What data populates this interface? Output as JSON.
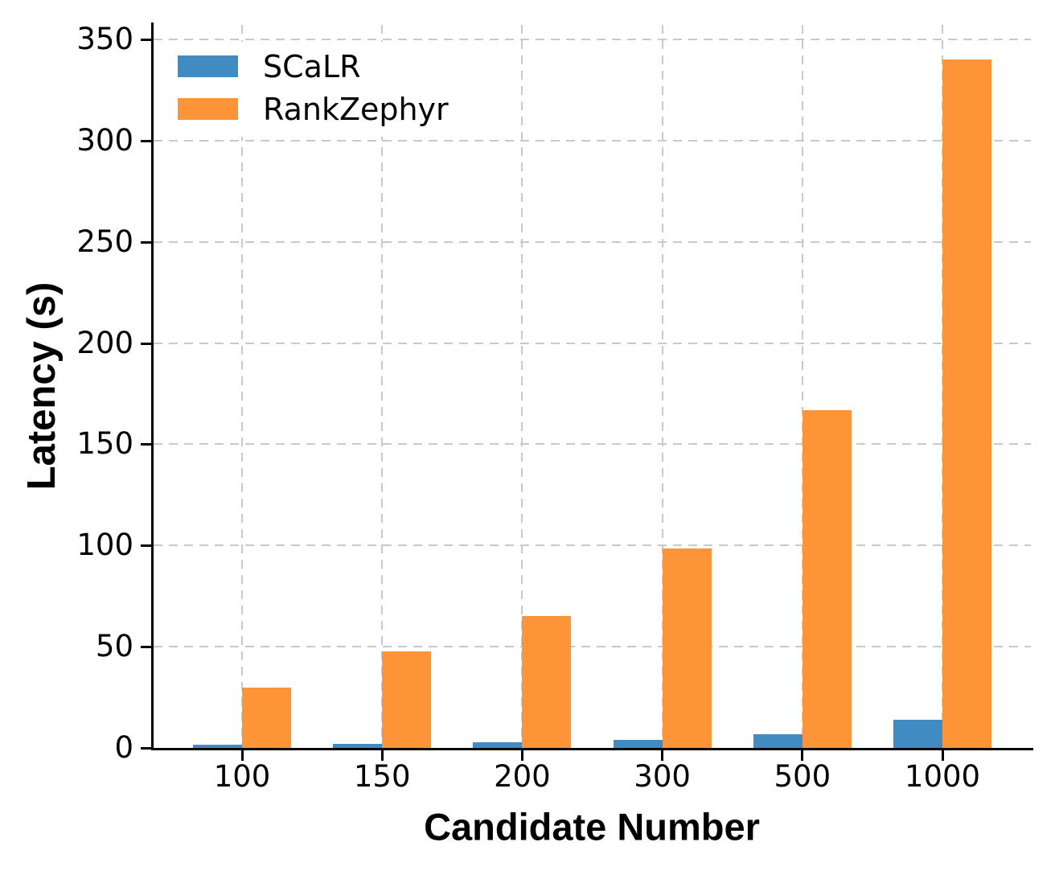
{
  "chart_data": {
    "type": "bar",
    "title": "",
    "xlabel": "Candidate Number",
    "ylabel": "Latency (s)",
    "categories": [
      "100",
      "150",
      "200",
      "300",
      "500",
      "1000"
    ],
    "series": [
      {
        "name": "SCaLR",
        "color": "#408bc1",
        "values": [
          1.4,
          2.1,
          2.8,
          4.0,
          6.9,
          13.9
        ]
      },
      {
        "name": "RankZephyr",
        "color": "#fd9438",
        "values": [
          30,
          47.5,
          65,
          98.5,
          167,
          340
        ]
      }
    ],
    "ylim": [
      0,
      350
    ],
    "yticks": [
      0,
      50,
      100,
      150,
      200,
      250,
      300,
      350
    ],
    "grid": true,
    "grid_style": "dashed",
    "grid_color": "#c9c9c9",
    "axis_color": "#000000",
    "legend_position": "upper left",
    "background_color": "#ffffff"
  }
}
